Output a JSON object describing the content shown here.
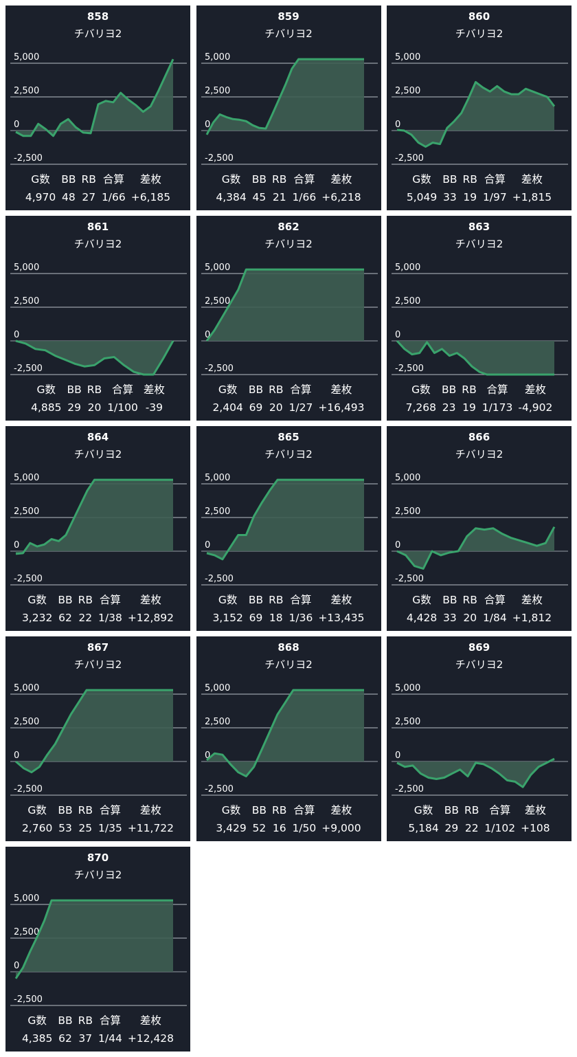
{
  "colors": {
    "card_bg": "#1b202b",
    "line": "#3aa36c",
    "fill": "#3e5e52",
    "grid": "#9aa0a8",
    "text": "#ffffff"
  },
  "stat_headers": [
    "G数",
    "BB",
    "RB",
    "合算",
    "差枚"
  ],
  "cards": [
    {
      "machine": "858",
      "name": "チバリヨ2",
      "stats": [
        "4,970",
        "48",
        "27",
        "1/66",
        "+6,185"
      ]
    },
    {
      "machine": "859",
      "name": "チバリヨ2",
      "stats": [
        "4,384",
        "45",
        "21",
        "1/66",
        "+6,218"
      ]
    },
    {
      "machine": "860",
      "name": "チバリヨ2",
      "stats": [
        "5,049",
        "33",
        "19",
        "1/97",
        "+1,815"
      ]
    },
    {
      "machine": "861",
      "name": "チバリヨ2",
      "stats": [
        "4,885",
        "29",
        "20",
        "1/100",
        "-39"
      ]
    },
    {
      "machine": "862",
      "name": "チバリヨ2",
      "stats": [
        "2,404",
        "69",
        "20",
        "1/27",
        "+16,493"
      ]
    },
    {
      "machine": "863",
      "name": "チバリヨ2",
      "stats": [
        "7,268",
        "23",
        "19",
        "1/173",
        "-4,902"
      ]
    },
    {
      "machine": "864",
      "name": "チバリヨ2",
      "stats": [
        "3,232",
        "62",
        "22",
        "1/38",
        "+12,892"
      ]
    },
    {
      "machine": "865",
      "name": "チバリヨ2",
      "stats": [
        "3,152",
        "69",
        "18",
        "1/36",
        "+13,435"
      ]
    },
    {
      "machine": "866",
      "name": "チバリヨ2",
      "stats": [
        "4,428",
        "33",
        "20",
        "1/84",
        "+1,812"
      ]
    },
    {
      "machine": "867",
      "name": "チバリヨ2",
      "stats": [
        "2,760",
        "53",
        "25",
        "1/35",
        "+11,722"
      ]
    },
    {
      "machine": "868",
      "name": "チバリヨ2",
      "stats": [
        "3,429",
        "52",
        "16",
        "1/50",
        "+9,000"
      ]
    },
    {
      "machine": "869",
      "name": "チバリヨ2",
      "stats": [
        "5,184",
        "29",
        "22",
        "1/102",
        "+108"
      ]
    },
    {
      "machine": "870",
      "name": "チバリヨ2",
      "stats": [
        "4,385",
        "62",
        "37",
        "1/44",
        "+12,428"
      ]
    }
  ],
  "chart_data": [
    {
      "type": "area",
      "ylim": [
        -2500,
        5000
      ],
      "yticks": [
        "5,000",
        "2,500",
        "0",
        "-2,500"
      ],
      "grid": true,
      "values": [
        -100,
        -400,
        -400,
        500,
        100,
        -400,
        500,
        850,
        250,
        -150,
        -200,
        1950,
        2200,
        2100,
        2800,
        2300,
        1900,
        1400,
        1800,
        2900,
        4100,
        5300
      ]
    },
    {
      "type": "area",
      "ylim": [
        -2500,
        5000
      ],
      "yticks": [
        "5,000",
        "2,500",
        "0",
        "-2,500"
      ],
      "grid": true,
      "values": [
        -300,
        600,
        1200,
        1000,
        850,
        800,
        700,
        400,
        200,
        150,
        1200,
        2300,
        3400,
        4600,
        5300,
        5300,
        5300,
        5300,
        5300,
        5300,
        5300,
        5300,
        5300,
        5300,
        5300
      ]
    },
    {
      "type": "area",
      "ylim": [
        -2500,
        5000
      ],
      "yticks": [
        "5,000",
        "2,500",
        "0",
        "-2,500"
      ],
      "grid": true,
      "values": [
        50,
        0,
        -300,
        -900,
        -1200,
        -900,
        -1000,
        200,
        700,
        1300,
        2400,
        3600,
        3200,
        2900,
        3300,
        2900,
        2700,
        2700,
        3100,
        2900,
        2700,
        2500,
        1800
      ]
    },
    {
      "type": "area",
      "ylim": [
        -2500,
        5000
      ],
      "yticks": [
        "5,000",
        "2,500",
        "0",
        "-2,500"
      ],
      "grid": true,
      "values": [
        0,
        -200,
        -600,
        -700,
        -1100,
        -1400,
        -1700,
        -1900,
        -1800,
        -1300,
        -1200,
        -1800,
        -2300,
        -2500,
        -2500,
        -1300,
        0
      ]
    },
    {
      "type": "area",
      "ylim": [
        -2500,
        5000
      ],
      "yticks": [
        "5,000",
        "2,500",
        "0",
        "-2,500"
      ],
      "grid": true,
      "values": [
        0,
        800,
        1800,
        2800,
        3800,
        5300,
        5300,
        5300,
        5300,
        5300,
        5300,
        5300,
        5300,
        5300,
        5300,
        5300,
        5300,
        5300,
        5300,
        5300,
        5300
      ]
    },
    {
      "type": "area",
      "ylim": [
        -2500,
        5000
      ],
      "yticks": [
        "5,000",
        "2,500",
        "0",
        "-2,500"
      ],
      "grid": true,
      "values": [
        0,
        -600,
        -1000,
        -900,
        -100,
        -900,
        -600,
        -1100,
        -900,
        -1300,
        -1900,
        -2300,
        -2500,
        -2500,
        -2500,
        -2500,
        -2500,
        -2500,
        -2500,
        -2500,
        -2500,
        -2500
      ]
    },
    {
      "type": "area",
      "ylim": [
        -2500,
        5000
      ],
      "yticks": [
        "5,000",
        "2,500",
        "0",
        "-2,500"
      ],
      "grid": true,
      "values": [
        -200,
        -150,
        600,
        350,
        500,
        900,
        750,
        1200,
        2300,
        3400,
        4500,
        5300,
        5300,
        5300,
        5300,
        5300,
        5300,
        5300,
        5300,
        5300,
        5300,
        5300,
        5300
      ]
    },
    {
      "type": "area",
      "ylim": [
        -2500,
        5000
      ],
      "yticks": [
        "5,000",
        "2,500",
        "0",
        "-2,500"
      ],
      "grid": true,
      "values": [
        -150,
        -300,
        -600,
        300,
        1200,
        1200,
        2600,
        3600,
        4500,
        5300,
        5300,
        5300,
        5300,
        5300,
        5300,
        5300,
        5300,
        5300,
        5300,
        5300,
        5300
      ]
    },
    {
      "type": "area",
      "ylim": [
        -2500,
        5000
      ],
      "yticks": [
        "5,000",
        "2,500",
        "0",
        "-2,500"
      ],
      "grid": true,
      "values": [
        0,
        -300,
        -1100,
        -1300,
        0,
        -300,
        -100,
        0,
        1100,
        1700,
        1600,
        1700,
        1300,
        1000,
        800,
        600,
        400,
        600,
        1800
      ]
    },
    {
      "type": "area",
      "ylim": [
        -2500,
        5000
      ],
      "yticks": [
        "5,000",
        "2,500",
        "0",
        "-2,500"
      ],
      "grid": true,
      "values": [
        0,
        -500,
        -800,
        -400,
        500,
        1300,
        2400,
        3500,
        4400,
        5300,
        5300,
        5300,
        5300,
        5300,
        5300,
        5300,
        5300,
        5300,
        5300,
        5300,
        5300
      ]
    },
    {
      "type": "area",
      "ylim": [
        -2500,
        5000
      ],
      "yticks": [
        "5,000",
        "2,500",
        "0",
        "-2,500"
      ],
      "grid": true,
      "values": [
        100,
        600,
        500,
        -200,
        -800,
        -1100,
        -400,
        900,
        2200,
        3500,
        4400,
        5300,
        5300,
        5300,
        5300,
        5300,
        5300,
        5300,
        5300,
        5300,
        5300
      ]
    },
    {
      "type": "area",
      "ylim": [
        -2500,
        5000
      ],
      "yticks": [
        "5,000",
        "2,500",
        "0",
        "-2,500"
      ],
      "grid": true,
      "values": [
        -100,
        -400,
        -300,
        -900,
        -1200,
        -1300,
        -1200,
        -900,
        -600,
        -1100,
        -100,
        -200,
        -500,
        -900,
        -1400,
        -1500,
        -1900,
        -1000,
        -400,
        -100,
        200
      ]
    },
    {
      "type": "area",
      "ylim": [
        -2500,
        5000
      ],
      "yticks": [
        "5,000",
        "2,500",
        "0",
        "-2,500"
      ],
      "grid": true,
      "values": [
        -500,
        300,
        1500,
        2600,
        3800,
        5300,
        5300,
        5300,
        5300,
        5300,
        5300,
        5300,
        5300,
        5300,
        5300,
        5300,
        5300,
        5300,
        5300,
        5300,
        5300,
        5300,
        5300
      ]
    }
  ]
}
